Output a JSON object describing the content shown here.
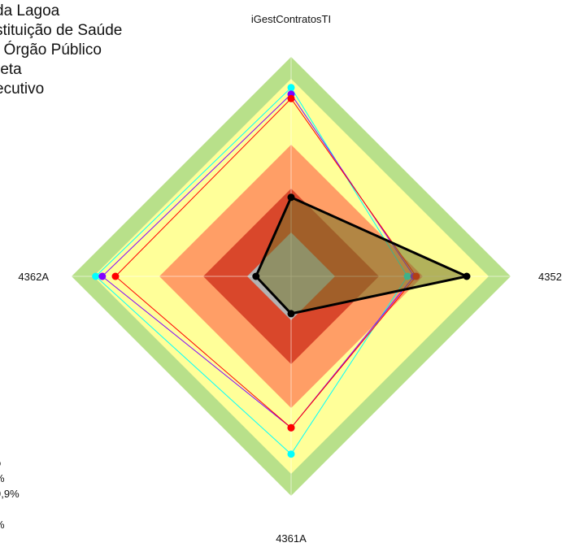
{
  "legend_top": [
    "da Lagoa",
    "stituição de Saúde",
    ": Órgão Público",
    "reta",
    "ecutivo"
  ],
  "legend_bottom": [
    "o",
    "%",
    "9,9%",
    "",
    "%"
  ],
  "chart_data": {
    "type": "radar",
    "title": "",
    "axes": [
      "iGestContratosTI",
      "4352",
      "4361A",
      "4362A"
    ],
    "range": [
      0,
      100
    ],
    "bands": [
      {
        "from": 90,
        "to": 100,
        "color": "#b8e08a"
      },
      {
        "from": 60,
        "to": 90,
        "color": "#ffff99"
      },
      {
        "from": 40,
        "to": 60,
        "color": "#ff9e66"
      },
      {
        "from": 20,
        "to": 40,
        "color": "#d9472b"
      },
      {
        "from": 0,
        "to": 20,
        "color": "#b3b3b3"
      }
    ],
    "series": [
      {
        "color": "#00ffff",
        "width": 1,
        "values": [
          86,
          53,
          81,
          89
        ]
      },
      {
        "color": "#8000ff",
        "width": 1,
        "values": [
          83,
          56,
          69,
          86
        ]
      },
      {
        "color": "#ff0000",
        "width": 1,
        "values": [
          81,
          57,
          69,
          80
        ]
      },
      {
        "color": "#000000",
        "width": 3,
        "fill": "rgba(115,115,40,0.55)",
        "values": [
          36,
          80,
          17,
          16
        ]
      }
    ]
  }
}
